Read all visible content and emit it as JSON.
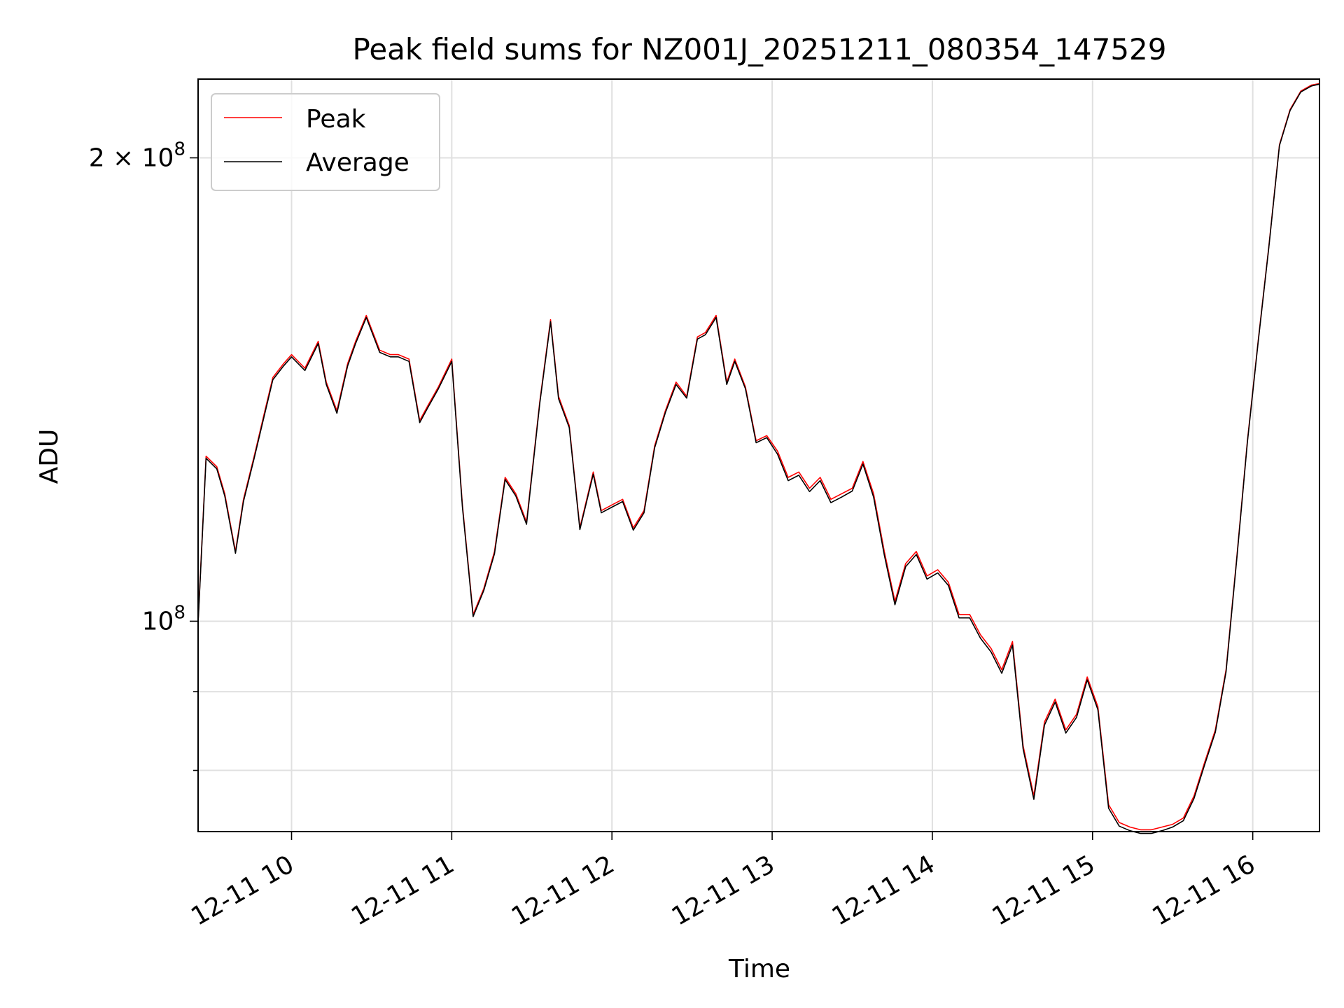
{
  "chart_data": {
    "type": "line",
    "title": "Peak field sums for NZ001J_20251211_080354_147529",
    "xlabel": "Time",
    "ylabel": "ADU",
    "yscale": "log",
    "xlim": [
      "2025-12-11 09:25",
      "2025-12-11 16:25"
    ],
    "ylim": [
      73000000,
      225000000
    ],
    "grid": true,
    "legend_position": "upper left",
    "x_ticks": [
      {
        "value": "2025-12-11 10:00",
        "label": "12-11 10"
      },
      {
        "value": "2025-12-11 11:00",
        "label": "12-11 11"
      },
      {
        "value": "2025-12-11 12:00",
        "label": "12-11 12"
      },
      {
        "value": "2025-12-11 13:00",
        "label": "12-11 13"
      },
      {
        "value": "2025-12-11 14:00",
        "label": "12-11 14"
      },
      {
        "value": "2025-12-11 15:00",
        "label": "12-11 15"
      },
      {
        "value": "2025-12-11 16:00",
        "label": "12-11 16"
      }
    ],
    "y_ticks": [
      {
        "value": 100000000,
        "base": "10",
        "exp": "8"
      },
      {
        "value": 200000000,
        "mult": "2 × 10",
        "exp": "8"
      }
    ],
    "y_minor_ticks": [
      60000000,
      70000000,
      80000000,
      90000000,
      300000000
    ],
    "x": [
      "09:25",
      "09:28",
      "09:32",
      "09:35",
      "09:39",
      "09:42",
      "09:46",
      "09:50",
      "09:53",
      "09:57",
      "10:00",
      "10:05",
      "10:10",
      "10:13",
      "10:17",
      "10:21",
      "10:24",
      "10:28",
      "10:33",
      "10:37",
      "10:40",
      "10:44",
      "10:48",
      "10:51",
      "10:55",
      "11:00",
      "11:04",
      "11:08",
      "11:12",
      "11:16",
      "11:20",
      "11:24",
      "11:28",
      "11:33",
      "11:37",
      "11:40",
      "11:44",
      "11:48",
      "11:53",
      "11:56",
      "12:00",
      "12:04",
      "12:08",
      "12:12",
      "12:16",
      "12:20",
      "12:24",
      "12:28",
      "12:32",
      "12:35",
      "12:39",
      "12:43",
      "12:46",
      "12:50",
      "12:54",
      "12:58",
      "13:02",
      "13:06",
      "13:10",
      "13:14",
      "13:18",
      "13:22",
      "13:26",
      "13:30",
      "13:34",
      "13:38",
      "13:42",
      "13:46",
      "13:50",
      "13:54",
      "13:58",
      "14:02",
      "14:06",
      "14:10",
      "14:14",
      "14:18",
      "14:22",
      "14:26",
      "14:30",
      "14:34",
      "14:38",
      "14:42",
      "14:46",
      "14:50",
      "14:54",
      "14:58",
      "15:02",
      "15:06",
      "15:10",
      "15:14",
      "15:18",
      "15:22",
      "15:26",
      "15:30",
      "15:34",
      "15:38",
      "15:42",
      "15:46",
      "15:50",
      "15:54",
      "15:58",
      "16:02",
      "16:06",
      "16:10",
      "16:14",
      "16:18",
      "16:22",
      "16:25"
    ],
    "series": [
      {
        "name": "Peak",
        "color": "#ff0000",
        "values": [
          100000000,
          128000000,
          126000000,
          121000000,
          111000000,
          120000000,
          128000000,
          137000000,
          144000000,
          147000000,
          149000000,
          146000000,
          152000000,
          143000000,
          137000000,
          147000000,
          152000000,
          158000000,
          150000000,
          149000000,
          149000000,
          148000000,
          135000000,
          138000000,
          142000000,
          148000000,
          119000000,
          101000000,
          105000000,
          111000000,
          124000000,
          121000000,
          116000000,
          139000000,
          157000000,
          140000000,
          134000000,
          115000000,
          125000000,
          118000000,
          119000000,
          120000000,
          115000000,
          118000000,
          130000000,
          137000000,
          143000000,
          140000000,
          153000000,
          154000000,
          158000000,
          143000000,
          148000000,
          142000000,
          131000000,
          132000000,
          129000000,
          124000000,
          125000000,
          122000000,
          124000000,
          120000000,
          121000000,
          122000000,
          127000000,
          121000000,
          111000000,
          103000000,
          109000000,
          111000000,
          107000000,
          108000000,
          106000000,
          101000000,
          101000000,
          98000000,
          96000000,
          93000000,
          97000000,
          83000000,
          77000000,
          86000000,
          89000000,
          85000000,
          87000000,
          92000000,
          88000000,
          76000000,
          74000000,
          73500000,
          73200000,
          73200000,
          73500000,
          73800000,
          74500000,
          77000000,
          81000000,
          85000000,
          93000000,
          110000000,
          131000000,
          152000000,
          175000000,
          204000000,
          215000000,
          221000000,
          223000000,
          223500000
        ]
      },
      {
        "name": "Average",
        "color": "#000000",
        "values": [
          99700000,
          127600000,
          125600000,
          120600000,
          110700000,
          119600000,
          127600000,
          136500000,
          143500000,
          146500000,
          148500000,
          145500000,
          151500000,
          142500000,
          136500000,
          146500000,
          151500000,
          157500000,
          149500000,
          148500000,
          148500000,
          147500000,
          134600000,
          137600000,
          141600000,
          147500000,
          118600000,
          100700000,
          104700000,
          110600000,
          123600000,
          120600000,
          115600000,
          138600000,
          156500000,
          139500000,
          133600000,
          114700000,
          124600000,
          117600000,
          118600000,
          119600000,
          114600000,
          117600000,
          129600000,
          136600000,
          142500000,
          139600000,
          152500000,
          153500000,
          157500000,
          142500000,
          147500000,
          141600000,
          130600000,
          131600000,
          128400000,
          123400000,
          124400000,
          121400000,
          123400000,
          119400000,
          120400000,
          121500000,
          126500000,
          120400000,
          110400000,
          102500000,
          108500000,
          110500000,
          106500000,
          107500000,
          105500000,
          100500000,
          100500000,
          97500000,
          95500000,
          92500000,
          96500000,
          82600000,
          76600000,
          85600000,
          88600000,
          84600000,
          86600000,
          91600000,
          87600000,
          75600000,
          73600000,
          73100000,
          72800000,
          72800000,
          73100000,
          73500000,
          74200000,
          76700000,
          80700000,
          84700000,
          92700000,
          109700000,
          130700000,
          151700000,
          174700000,
          203700000,
          214700000,
          220700000,
          222700000,
          223300000
        ]
      }
    ]
  }
}
